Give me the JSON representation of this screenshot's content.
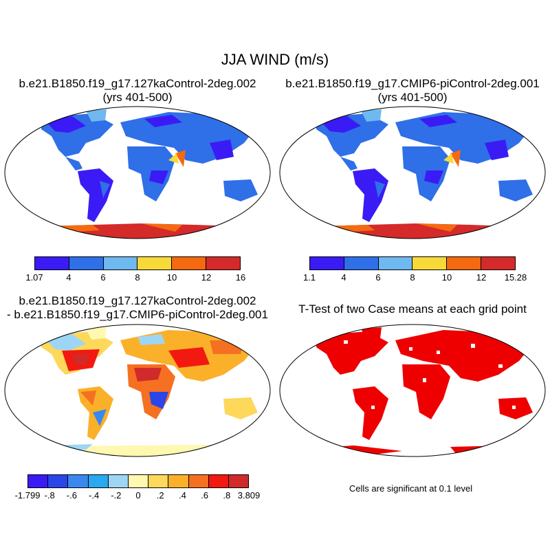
{
  "title": "JJA WIND (m/s)",
  "panels": {
    "p1": {
      "title_line1": "b.e21.B1850.f19_g17.127kaControl-2deg.002",
      "title_line2": "(yrs 401-500)"
    },
    "p2": {
      "title_line1": "b.e21.B1850.f19_g17.CMIP6-piControl-2deg.001",
      "title_line2": "(yrs 401-500)"
    },
    "p3": {
      "title_line1": "b.e21.B1850.f19_g17.127kaControl-2deg.002",
      "title_line2": "- b.e21.B1850.f19_g17.CMIP6-piControl-2deg.001"
    },
    "p4": {
      "title_line1": "T-Test of two Case means at each grid point"
    }
  },
  "colorbars": {
    "cb1": {
      "labels": [
        "1.07",
        "4",
        "6",
        "8",
        "10",
        "12",
        "16"
      ],
      "colors": [
        "#3a1bf5",
        "#2f6fe8",
        "#6fb8f0",
        "#f8d93a",
        "#f56a10",
        "#d42a2a"
      ]
    },
    "cb2": {
      "labels": [
        "1.1",
        "4",
        "6",
        "8",
        "10",
        "12",
        "15.28"
      ],
      "colors": [
        "#3a1bf5",
        "#2f6fe8",
        "#6fb8f0",
        "#f8d93a",
        "#f56a10",
        "#d42a2a"
      ]
    },
    "cb3": {
      "labels": [
        "-1.799",
        "-.8",
        "-.6",
        "-.4",
        "-.2",
        "0",
        ".2",
        ".4",
        ".6",
        ".8",
        "3.809"
      ],
      "colors": [
        "#3a1bf5",
        "#2a45e8",
        "#3a88ee",
        "#2aa8f0",
        "#9dd6f5",
        "#fff8b0",
        "#fdd85a",
        "#fbb02a",
        "#f57020",
        "#f21a10",
        "#d02a2a"
      ]
    }
  },
  "note": "Cells are significant at 0.1 level"
}
